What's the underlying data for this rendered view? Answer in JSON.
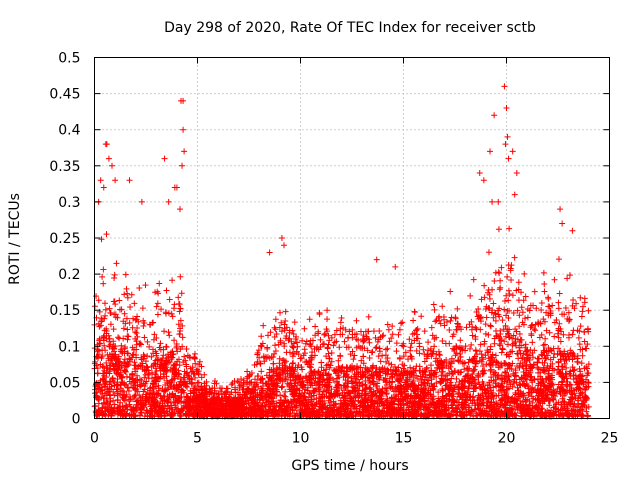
{
  "chart_data": {
    "type": "scatter",
    "title": "Day 298 of 2020, Rate Of TEC Index for receiver sctb",
    "xlabel": "GPS time / hours",
    "ylabel": "ROTI / TECUs",
    "xlim": [
      0,
      25
    ],
    "ylim": [
      0,
      0.5
    ],
    "x_ticks": [
      "0",
      "5",
      "10",
      "15",
      "20",
      "25"
    ],
    "y_ticks": [
      "0",
      "0.05",
      "0.1",
      "0.15",
      "0.2",
      "0.25",
      "0.3",
      "0.35",
      "0.4",
      "0.45",
      "0.5"
    ],
    "grid": true,
    "marker": "+",
    "marker_color": "#ff0000",
    "envelope": {
      "x": [
        0,
        0.5,
        1,
        1.5,
        2,
        2.5,
        3,
        3.5,
        4,
        4.5,
        5,
        5.5,
        6,
        6.5,
        7,
        7.5,
        8,
        8.5,
        9,
        9.5,
        10,
        10.5,
        11,
        11.5,
        12,
        12.5,
        13,
        13.5,
        14,
        14.5,
        15,
        15.5,
        16,
        16.5,
        17,
        17.5,
        18,
        18.5,
        19,
        19.5,
        20,
        20.5,
        21,
        21.5,
        22,
        22.5,
        23,
        23.5,
        24
      ],
      "typical_max": [
        0.22,
        0.27,
        0.22,
        0.2,
        0.19,
        0.19,
        0.2,
        0.18,
        0.22,
        0.14,
        0.09,
        0.05,
        0.05,
        0.05,
        0.05,
        0.09,
        0.12,
        0.14,
        0.18,
        0.16,
        0.13,
        0.14,
        0.15,
        0.15,
        0.16,
        0.15,
        0.15,
        0.15,
        0.15,
        0.14,
        0.15,
        0.15,
        0.15,
        0.17,
        0.18,
        0.17,
        0.16,
        0.2,
        0.22,
        0.26,
        0.28,
        0.24,
        0.2,
        0.19,
        0.21,
        0.22,
        0.2,
        0.18,
        0.17
      ]
    },
    "points": [
      {
        "x": 0.3,
        "y": 0.33
      },
      {
        "x": 0.45,
        "y": 0.32
      },
      {
        "x": 0.55,
        "y": 0.38
      },
      {
        "x": 0.6,
        "y": 0.38
      },
      {
        "x": 0.7,
        "y": 0.36
      },
      {
        "x": 0.85,
        "y": 0.35
      },
      {
        "x": 1.0,
        "y": 0.33
      },
      {
        "x": 0.2,
        "y": 0.3
      },
      {
        "x": 3.4,
        "y": 0.36
      },
      {
        "x": 3.9,
        "y": 0.32
      },
      {
        "x": 4.0,
        "y": 0.32
      },
      {
        "x": 4.2,
        "y": 0.44
      },
      {
        "x": 4.3,
        "y": 0.44
      },
      {
        "x": 4.3,
        "y": 0.4
      },
      {
        "x": 4.35,
        "y": 0.37
      },
      {
        "x": 4.25,
        "y": 0.35
      },
      {
        "x": 4.15,
        "y": 0.29
      },
      {
        "x": 3.6,
        "y": 0.3
      },
      {
        "x": 2.3,
        "y": 0.3
      },
      {
        "x": 1.7,
        "y": 0.33
      },
      {
        "x": 9.1,
        "y": 0.25
      },
      {
        "x": 9.2,
        "y": 0.24
      },
      {
        "x": 8.5,
        "y": 0.23
      },
      {
        "x": 13.7,
        "y": 0.22
      },
      {
        "x": 14.6,
        "y": 0.21
      },
      {
        "x": 18.7,
        "y": 0.34
      },
      {
        "x": 18.9,
        "y": 0.33
      },
      {
        "x": 19.2,
        "y": 0.37
      },
      {
        "x": 19.4,
        "y": 0.42
      },
      {
        "x": 19.6,
        "y": 0.3
      },
      {
        "x": 19.9,
        "y": 0.46
      },
      {
        "x": 20.0,
        "y": 0.43
      },
      {
        "x": 20.05,
        "y": 0.39
      },
      {
        "x": 19.95,
        "y": 0.38
      },
      {
        "x": 20.1,
        "y": 0.36
      },
      {
        "x": 20.3,
        "y": 0.37
      },
      {
        "x": 20.5,
        "y": 0.34
      },
      {
        "x": 20.4,
        "y": 0.31
      },
      {
        "x": 19.3,
        "y": 0.3
      },
      {
        "x": 22.6,
        "y": 0.29
      },
      {
        "x": 22.7,
        "y": 0.27
      },
      {
        "x": 23.2,
        "y": 0.26
      }
    ]
  }
}
